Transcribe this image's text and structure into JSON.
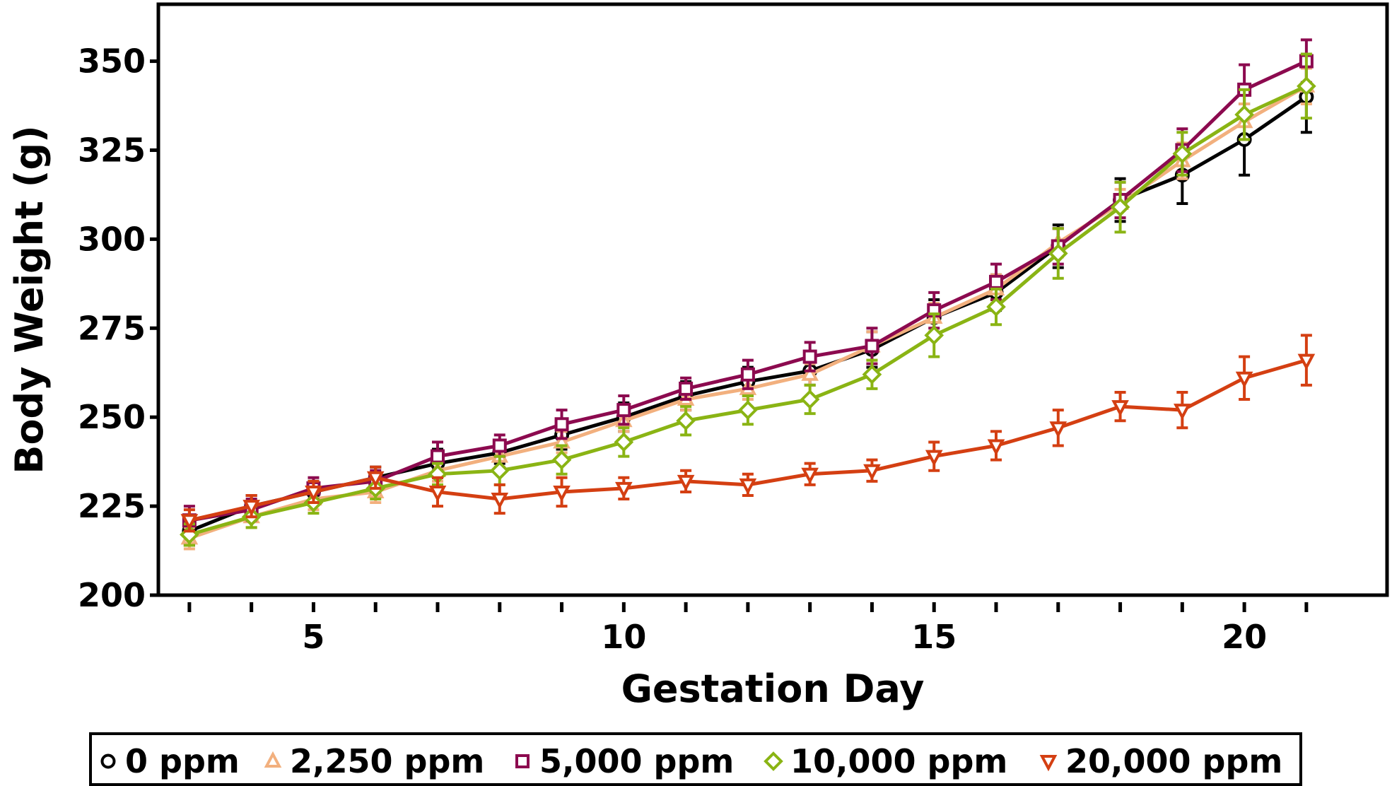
{
  "chart_data": {
    "type": "line",
    "xlabel": "Gestation Day",
    "ylabel": "Body Weight (g)",
    "xlim": [
      2.5,
      22.3
    ],
    "ylim": [
      200,
      366
    ],
    "x_ticks_labeled": [
      5,
      10,
      15,
      20
    ],
    "x_ticks_minor": [
      3,
      4,
      5,
      6,
      7,
      8,
      9,
      10,
      11,
      12,
      13,
      14,
      15,
      16,
      17,
      18,
      19,
      20,
      21
    ],
    "y_ticks": [
      200,
      225,
      250,
      275,
      300,
      325,
      350
    ],
    "y_tick_labels": [
      "200",
      "225",
      "250",
      "275",
      "300",
      "325",
      "350"
    ],
    "x_tick_labels": [
      "5",
      "10",
      "15",
      "20"
    ],
    "legend_position": "bottom",
    "x": [
      3,
      4,
      5,
      6,
      7,
      8,
      9,
      10,
      11,
      12,
      13,
      14,
      15,
      16,
      17,
      18,
      19,
      20,
      21
    ],
    "series": [
      {
        "name": "0 ppm",
        "color": "#000000",
        "marker": "circle",
        "values": [
          218,
          225,
          229,
          233,
          237,
          240,
          245,
          250,
          256,
          260,
          263,
          269,
          278,
          285,
          298,
          311,
          318,
          328,
          340
        ],
        "errors": [
          4,
          3,
          3,
          3,
          4,
          3,
          4,
          4,
          4,
          4,
          4,
          5,
          5,
          5,
          6,
          6,
          8,
          10,
          10
        ]
      },
      {
        "name": "2,250 ppm",
        "color": "#f2b07e",
        "marker": "triangle-up",
        "values": [
          216,
          222,
          227,
          229,
          235,
          239,
          243,
          249,
          255,
          258,
          262,
          270,
          278,
          286,
          299,
          310,
          322,
          333,
          343
        ],
        "errors": [
          3,
          3,
          3,
          3,
          3,
          3,
          3,
          3,
          3,
          3,
          3,
          4,
          4,
          4,
          4,
          4,
          5,
          5,
          5
        ]
      },
      {
        "name": "5,000 ppm",
        "color": "#8c0a4f",
        "marker": "square",
        "values": [
          221,
          224,
          230,
          232,
          239,
          242,
          248,
          252,
          258,
          262,
          267,
          270,
          280,
          288,
          298,
          311,
          325,
          342,
          350
        ],
        "errors": [
          4,
          3,
          3,
          3,
          4,
          3,
          4,
          4,
          3,
          4,
          4,
          5,
          5,
          5,
          5,
          5,
          6,
          7,
          6
        ]
      },
      {
        "name": "10,000 ppm",
        "color": "#8ab414",
        "marker": "diamond",
        "values": [
          217,
          222,
          226,
          230,
          234,
          235,
          238,
          243,
          249,
          252,
          255,
          262,
          273,
          281,
          296,
          309,
          324,
          335,
          343
        ],
        "errors": [
          3,
          3,
          3,
          3,
          3,
          4,
          4,
          4,
          4,
          4,
          4,
          4,
          6,
          5,
          7,
          7,
          6,
          7,
          9
        ]
      },
      {
        "name": "20,000 ppm",
        "color": "#d43f12",
        "marker": "triangle-down",
        "values": [
          221,
          225,
          229,
          233,
          229,
          227,
          229,
          230,
          232,
          231,
          234,
          235,
          239,
          242,
          247,
          253,
          252,
          261,
          266
        ],
        "errors": [
          3,
          3,
          3,
          3,
          4,
          4,
          4,
          3,
          3,
          3,
          3,
          3,
          4,
          4,
          5,
          4,
          5,
          6,
          7
        ]
      }
    ]
  }
}
